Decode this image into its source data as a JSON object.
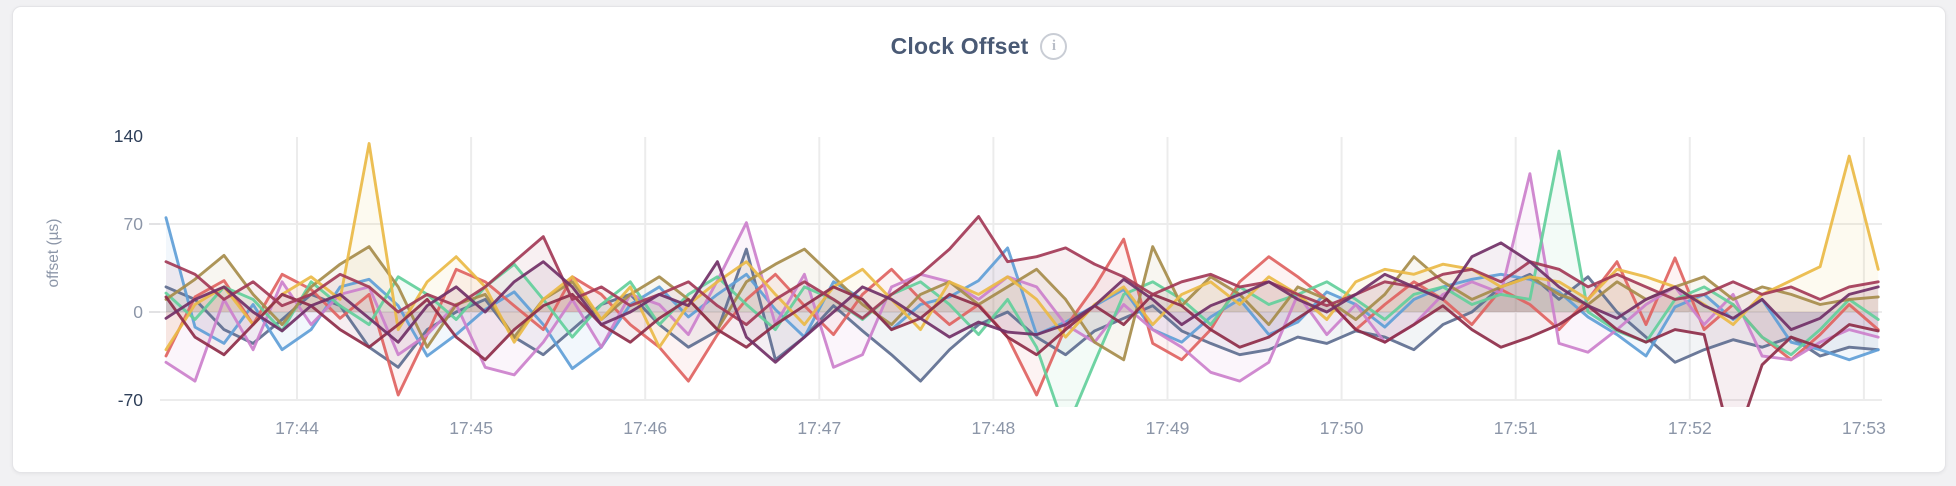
{
  "card": {
    "title": "Clock Offset",
    "info_icon_glyph": "i"
  },
  "colors": {
    "title": "#4a5a75",
    "axis_label": "#8c96a8",
    "axis_label_emphasis": "#2e3f59",
    "grid": "#ececec",
    "tick_dash": "#e2e2e4",
    "card_background": "#ffffff",
    "card_border": "#e4e4e7",
    "page_background": "#f1f1f3"
  },
  "chart_data": {
    "type": "line",
    "title": "Clock Offset",
    "xlabel": "",
    "ylabel": "offset (µs)",
    "x_start_time": "17:43:15",
    "x_step_seconds": 10,
    "x_tick_labels": [
      "17:44",
      "17:45",
      "17:46",
      "17:47",
      "17:48",
      "17:49",
      "17:50",
      "17:51",
      "17:52",
      "17:53"
    ],
    "y_ticks": [
      {
        "value": 140,
        "label": "140",
        "emphasized": true
      },
      {
        "value": 70,
        "label": "70",
        "emphasized": false
      },
      {
        "value": 0,
        "label": "0",
        "emphasized": false
      },
      {
        "value": -70,
        "label": "-70",
        "emphasized": true
      }
    ],
    "ylim": [
      -70,
      140
    ],
    "grid": "on",
    "legend": "none",
    "units": "microseconds",
    "series": [
      {
        "name": "series-1-blue",
        "color": "#5F9ED7",
        "values": [
          75,
          -12,
          -25,
          6,
          -30,
          -14,
          20,
          26,
          5,
          -35,
          -18,
          2,
          16,
          -10,
          -45,
          -28,
          6,
          20,
          -4,
          14,
          30,
          2,
          -20,
          24,
          10,
          -14,
          6,
          12,
          25,
          51,
          -18,
          -8,
          5,
          18,
          -14,
          -24,
          -4,
          10,
          -18,
          -8,
          16,
          6,
          -12,
          10,
          20,
          26,
          30,
          26,
          16,
          -4,
          -18,
          -35,
          4,
          14,
          -6,
          10,
          -24,
          -30,
          -38,
          -30
        ]
      },
      {
        "name": "series-2-red",
        "color": "#E06361",
        "values": [
          -35,
          12,
          25,
          -10,
          30,
          18,
          -5,
          14,
          -66,
          -18,
          34,
          24,
          5,
          -14,
          28,
          14,
          -10,
          -28,
          -55,
          -18,
          10,
          30,
          5,
          -18,
          14,
          34,
          10,
          -10,
          6,
          -20,
          -66,
          -12,
          20,
          58,
          -25,
          -38,
          -14,
          24,
          44,
          28,
          10,
          -14,
          6,
          24,
          10,
          -10,
          18,
          6,
          -14,
          10,
          40,
          -10,
          43,
          -14,
          6,
          -20,
          -38,
          -18,
          6,
          -14
        ]
      },
      {
        "name": "series-3-green",
        "color": "#63CF9B",
        "values": [
          15,
          -6,
          20,
          10,
          -15,
          24,
          5,
          -10,
          28,
          14,
          -6,
          20,
          38,
          10,
          -20,
          6,
          24,
          -10,
          14,
          28,
          6,
          -14,
          20,
          10,
          -6,
          14,
          24,
          6,
          -18,
          10,
          -28,
          -95,
          -40,
          14,
          24,
          10,
          -10,
          20,
          6,
          14,
          24,
          10,
          -6,
          14,
          20,
          6,
          14,
          10,
          128,
          0,
          -15,
          -24,
          10,
          20,
          6,
          -20,
          -34,
          -14,
          10,
          -6
        ]
      },
      {
        "name": "series-4-gold",
        "color": "#EABA46",
        "values": [
          -30,
          6,
          20,
          -10,
          14,
          28,
          10,
          134,
          -14,
          24,
          44,
          20,
          -24,
          10,
          28,
          -6,
          20,
          -28,
          6,
          24,
          40,
          14,
          -10,
          20,
          34,
          10,
          -14,
          24,
          14,
          28,
          10,
          -20,
          6,
          20,
          -10,
          14,
          24,
          6,
          28,
          14,
          -6,
          24,
          34,
          30,
          38,
          34,
          20,
          28,
          24,
          10,
          34,
          28,
          20,
          6,
          -10,
          14,
          25,
          36,
          124,
          34
        ]
      },
      {
        "name": "series-5-olive",
        "color": "#A68C4B",
        "values": [
          10,
          26,
          45,
          14,
          -10,
          20,
          38,
          52,
          20,
          -28,
          6,
          14,
          -20,
          10,
          24,
          -6,
          14,
          28,
          10,
          -14,
          24,
          38,
          50,
          28,
          6,
          -10,
          14,
          24,
          6,
          20,
          34,
          10,
          -24,
          -38,
          52,
          5,
          28,
          14,
          -10,
          20,
          10,
          -6,
          14,
          44,
          24,
          10,
          20,
          28,
          14,
          6,
          24,
          10,
          20,
          28,
          10,
          20,
          14,
          6,
          10,
          12
        ]
      },
      {
        "name": "series-6-orchid",
        "color": "#CC80CC",
        "values": [
          -40,
          -55,
          10,
          -30,
          24,
          -10,
          14,
          20,
          -34,
          -18,
          6,
          -44,
          -50,
          -24,
          10,
          -28,
          14,
          6,
          -18,
          25,
          71,
          -10,
          30,
          -44,
          -34,
          20,
          30,
          24,
          10,
          28,
          20,
          -10,
          -24,
          6,
          -14,
          -28,
          -48,
          -55,
          -40,
          14,
          -18,
          6,
          -24,
          -10,
          14,
          24,
          15,
          110,
          -25,
          -32,
          -14,
          6,
          20,
          -10,
          14,
          -35,
          -38,
          -24,
          -14,
          -20
        ]
      },
      {
        "name": "series-7-slate",
        "color": "#5E6E90",
        "values": [
          20,
          10,
          -14,
          -25,
          -6,
          14,
          5,
          -28,
          -44,
          -14,
          0,
          10,
          -20,
          -34,
          -14,
          6,
          14,
          -10,
          -28,
          -15,
          50,
          -38,
          -20,
          5,
          -15,
          -34,
          -55,
          -30,
          -10,
          0,
          -20,
          -34,
          -15,
          -5,
          5,
          -15,
          -25,
          -34,
          -30,
          -20,
          -25,
          -15,
          -20,
          -30,
          -10,
          0,
          20,
          30,
          10,
          28,
          0,
          -20,
          -40,
          -30,
          -22,
          -28,
          -20,
          -35,
          -28,
          -30
        ]
      },
      {
        "name": "series-8-maroon",
        "color": "#A33A57",
        "values": [
          40,
          30,
          10,
          24,
          5,
          14,
          30,
          20,
          0,
          14,
          5,
          20,
          40,
          60,
          10,
          20,
          5,
          14,
          24,
          5,
          -10,
          10,
          24,
          10,
          -5,
          14,
          30,
          50,
          76,
          40,
          44,
          51,
          38,
          28,
          14,
          24,
          30,
          20,
          24,
          14,
          5,
          14,
          24,
          20,
          30,
          34,
          24,
          40,
          34,
          20,
          30,
          20,
          10,
          14,
          24,
          14,
          20,
          10,
          20,
          24
        ]
      },
      {
        "name": "series-9-wine",
        "color": "#8E2C49",
        "values": [
          12,
          -20,
          -34,
          -10,
          14,
          5,
          -14,
          -28,
          -10,
          10,
          -20,
          -38,
          -14,
          5,
          14,
          -10,
          -24,
          -5,
          10,
          -14,
          -28,
          -10,
          5,
          20,
          10,
          -14,
          -5,
          14,
          5,
          -20,
          -34,
          -14,
          5,
          -10,
          14,
          5,
          -14,
          -28,
          -20,
          -5,
          10,
          -14,
          -24,
          -10,
          5,
          -14,
          -28,
          -20,
          -10,
          5,
          -14,
          -24,
          -14,
          -18,
          -110,
          -42,
          -20,
          -28,
          -10,
          -15
        ]
      },
      {
        "name": "series-10-plum",
        "color": "#713067",
        "values": [
          -5,
          10,
          20,
          0,
          -15,
          5,
          14,
          -5,
          -24,
          5,
          20,
          0,
          24,
          40,
          20,
          -10,
          0,
          14,
          5,
          40,
          -20,
          -40,
          -20,
          0,
          20,
          10,
          -5,
          -20,
          -8,
          -16,
          -18,
          -10,
          5,
          26,
          10,
          -10,
          5,
          14,
          24,
          10,
          0,
          14,
          30,
          20,
          10,
          44,
          55,
          40,
          20,
          5,
          -5,
          10,
          20,
          5,
          -5,
          10,
          -14,
          -5,
          14,
          20
        ]
      }
    ]
  }
}
